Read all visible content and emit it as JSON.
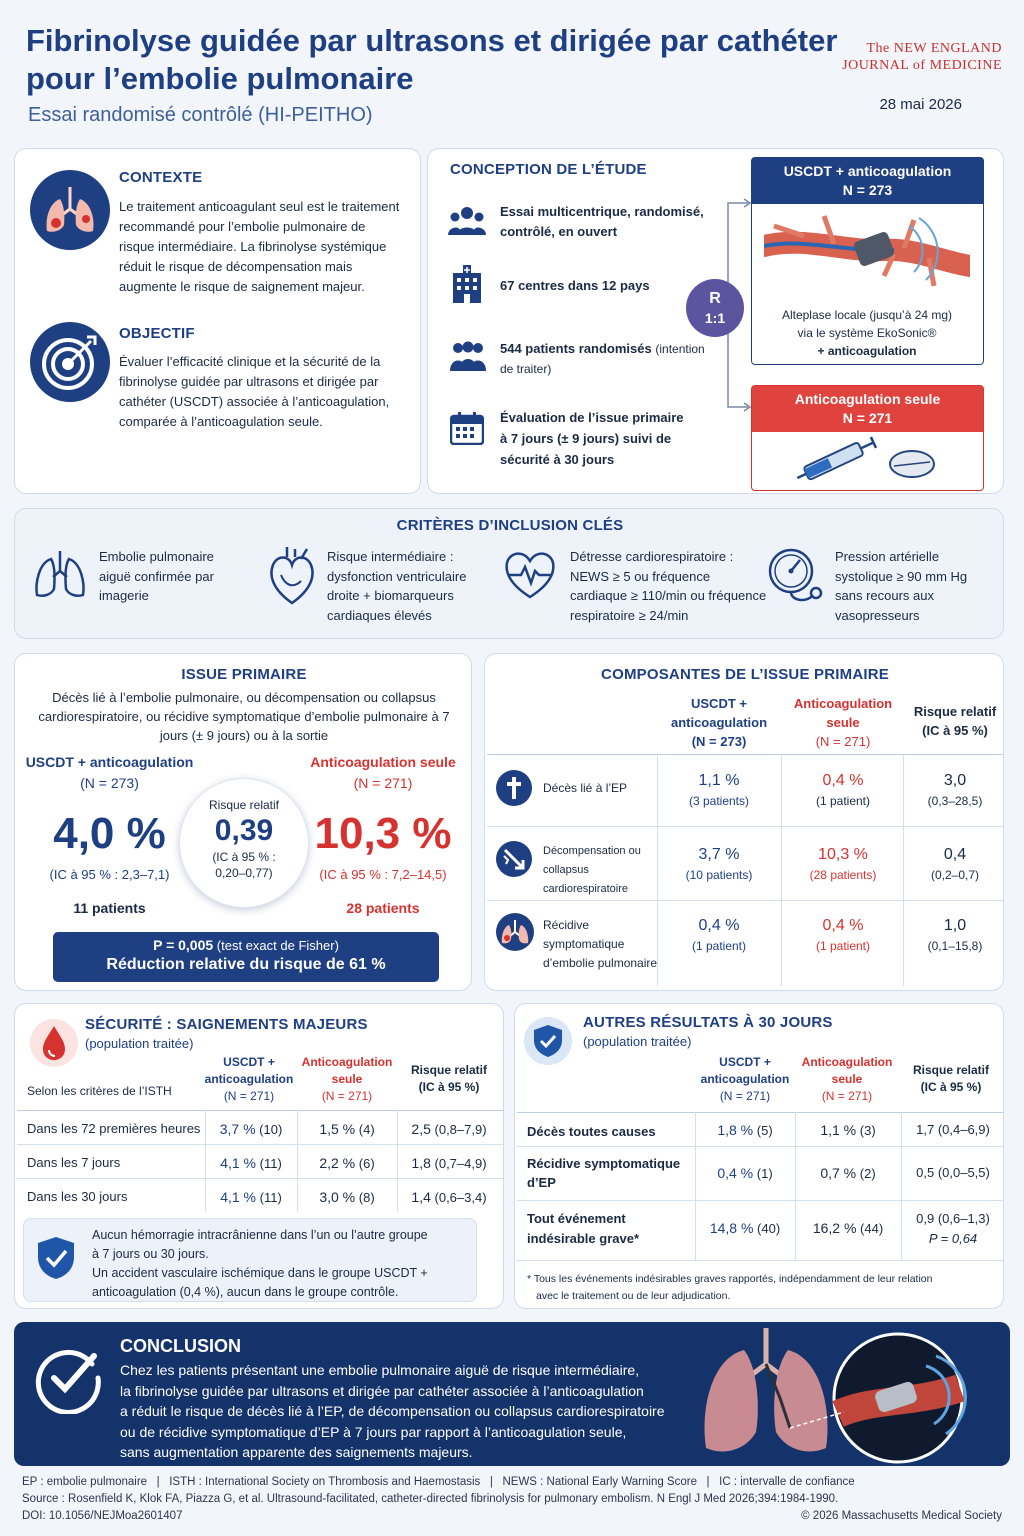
{
  "header": {
    "title_line1": "Fibrinolyse guidée par ultrasons et dirigée par cathéter",
    "title_line2": "pour l’embolie pulmonaire",
    "subtitle": "Essai randomisé contrôlé (HI-PEITHO)",
    "journal_line1": "The NEW ENGLAND",
    "journal_line2": "JOURNAL of MEDICINE",
    "date": "28 mai 2026"
  },
  "context": {
    "title": "CONTEXTE",
    "text": "Le traitement anticoagulant seul est le traitement recommandé pour l’embolie pulmonaire de risque intermédiaire. La fibrinolyse systémique réduit le risque de décompensation mais augmente le risque de saignement majeur."
  },
  "objective": {
    "title": "OBJECTIF",
    "text": "Évaluer l’efficacité clinique et la sécurité de la fibrinolyse guidée par ultrasons et dirigée par cathéter (USCDT) associée à l’anticoagulation, comparée à l’anticoagulation seule."
  },
  "design": {
    "title": "CONCEPTION DE L’ÉTUDE",
    "items": [
      {
        "icon": "group-icon",
        "bold": "Essai multicentrique, randomisé, contrôlé, en ouvert",
        "normal": ""
      },
      {
        "icon": "hospital-icon",
        "bold": "67 centres dans 12 pays",
        "normal": ""
      },
      {
        "icon": "patients-icon",
        "bold": "544 patients randomisés",
        "normal": "(intention de traiter)"
      },
      {
        "icon": "calendar-icon",
        "bold": "Évaluation de l’issue primaire à 7 jours (± 9 jours) suivi de sécurité à 30 jours",
        "normal": ""
      }
    ],
    "randomization_r": "R",
    "randomization_ratio": "1:1",
    "arm1_title": "USCDT + anticoagulation",
    "arm1_n": "N = 273",
    "arm1_desc1": "Alteplase locale (jusqu’à 24 mg)",
    "arm1_desc2": "via le système EkoSonic®",
    "arm1_desc3": "+ anticoagulation",
    "arm2_title": "Anticoagulation seule",
    "arm2_n": "N = 271"
  },
  "inclusion": {
    "title": "CRITÈRES D’INCLUSION CLÉS",
    "items": [
      {
        "icon": "lungs-icon",
        "text": "Embolie pulmonaire aiguë confirmée par imagerie"
      },
      {
        "icon": "heart-icon",
        "text": "Risque intermédiaire : dysfonction ventriculaire droite + biomarqueurs cardiaques élevés"
      },
      {
        "icon": "heart-rate-icon",
        "text": "Détresse cardiorespiratoire : NEWS ≥ 5 ou fréquence cardiaque ≥ 110/min ou fréquence respiratoire ≥ 24/min"
      },
      {
        "icon": "blood-pressure-gauge-icon",
        "text": "Pression artérielle systolique ≥ 90 mm Hg sans recours aux vasopresseurs"
      }
    ]
  },
  "primary": {
    "title": "ISSUE PRIMAIRE",
    "description": "Décès lié à l’embolie pulmonaire, ou décompensation ou collapsus cardiorespiratoire, ou récidive symptomatique d’embolie pulmonaire à 7 jours (± 9 jours) ou à la sortie",
    "arm1_label": "USCDT + anticoagulation",
    "arm1_n": "(N = 273)",
    "arm1_value": "4,0 %",
    "arm1_ci": "(IC à 95 % : 2,3–7,1)",
    "arm1_patients": "11 patients",
    "arm2_label": "Anticoagulation seule",
    "arm2_n": "(N = 271)",
    "arm2_value": "10,3 %",
    "arm2_ci": "(IC à 95 % : 7,2–14,5)",
    "arm2_patients": "28 patients",
    "rr_label": "Risque relatif",
    "rr_value": "0,39",
    "rr_ci1": "(IC à 95 % :",
    "rr_ci2": "0,20–0,77)",
    "p_value": "P = 0,005",
    "p_test": "(test exact de Fisher)",
    "reduction": "Réduction relative du risque de 61 %"
  },
  "components": {
    "title": "COMPOSANTES DE L’ISSUE PRIMAIRE",
    "col1": [
      "USCDT +",
      "anticoagulation",
      "(N = 273)"
    ],
    "col2": [
      "Anticoagulation",
      "seule",
      "(N = 271)"
    ],
    "col3": [
      "Risque relatif",
      "(IC à 95 %)"
    ],
    "rows": [
      {
        "icon": "cross-icon",
        "label": "Décès lié à l’EP",
        "v1": "1,1 %",
        "s1": "(3 patients)",
        "v2": "0,4 %",
        "s2": "(1 patient)",
        "rr": "3,0",
        "ci": "(0,3–28,5)"
      },
      {
        "icon": "collapse-icon",
        "label": "Décompensation ou collapsus cardiorespiratoire",
        "v1": "3,7 %",
        "s1": "(10 patients)",
        "v2": "10,3 %",
        "s2": "(28 patients)",
        "rr": "0,4",
        "ci": "(0,2–0,7)"
      },
      {
        "icon": "lungs-icon",
        "label": "Récidive symptomatique d’embolie pulmonaire",
        "v1": "0,4 %",
        "s1": "(1 patient)",
        "v2": "0,4 %",
        "s2": "(1 patient)",
        "rr": "1,0",
        "ci": "(0,1–15,8)"
      }
    ]
  },
  "safety": {
    "title": "SÉCURITÉ : SAIGNEMENTS MAJEURS",
    "population": "(population traitée)",
    "row_header": "Selon les critères de l’ISTH",
    "col1": [
      "USCDT +",
      "anticoagulation",
      "(N = 271)"
    ],
    "col2": [
      "Anticoagulation",
      "seule",
      "(N = 271)"
    ],
    "col3": [
      "Risque relatif",
      "(IC à 95 %)"
    ],
    "rows": [
      {
        "label": "Dans les 72 premières heures",
        "v1": "3,7 %",
        "n1": "(10)",
        "v2": "1,5 %",
        "n2": "(4)",
        "rr": "2,5",
        "ci": "(0,8–7,9)"
      },
      {
        "label": "Dans les 7 jours",
        "v1": "4,1 %",
        "n1": "(11)",
        "v2": "2,2 %",
        "n2": "(6)",
        "rr": "1,8",
        "ci": "(0,7–4,9)"
      },
      {
        "label": "Dans les 30 jours",
        "v1": "4,1 %",
        "n1": "(11)",
        "v2": "3,0 %",
        "n2": "(8)",
        "rr": "1,4",
        "ci": "(0,6–3,4)"
      }
    ],
    "note_line1": "Aucun hémorragie intracrânienne dans l’un ou l’autre groupe",
    "note_line2": "à 7 jours ou 30 jours.",
    "note_line3": "Un accident vasculaire ischémique dans le groupe USCDT +",
    "note_line4": "anticoagulation (0,4 %), aucun dans le groupe contrôle."
  },
  "other": {
    "title": "AUTRES RÉSULTATS À 30 JOURS",
    "population": "(population traitée)",
    "col1": [
      "USCDT +",
      "anticoagulation",
      "(N = 271)"
    ],
    "col2": [
      "Anticoagulation",
      "seule",
      "(N = 271)"
    ],
    "col3": [
      "Risque relatif",
      "(IC à 95 %)"
    ],
    "rows": [
      {
        "label1": "Décès toutes causes",
        "label2": "",
        "v1": "1,8 %",
        "n1": "(5)",
        "v2": "1,1 %",
        "n2": "(3)",
        "rr": "1,7 (0,4–6,9)",
        "p": ""
      },
      {
        "label1": "Récidive symptomatique",
        "label2": "d’EP",
        "v1": "0,4 %",
        "n1": "(1)",
        "v2": "0,7 %",
        "n2": "(2)",
        "rr": "0,5 (0,0–5,5)",
        "p": ""
      },
      {
        "label1": "Tout événement",
        "label2": "indésirable grave*",
        "v1": "14,8 %",
        "n1": "(40)",
        "v2": "16,2 %",
        "n2": "(44)",
        "rr": "0,9 (0,6–1,3)",
        "p": "P = 0,64"
      }
    ],
    "footnote_line1": "* Tous les événements indésirables graves rapportés, indépendamment de leur relation",
    "footnote_line2": "avec le traitement ou de leur adjudication."
  },
  "conclusion": {
    "title": "CONCLUSION",
    "lines": [
      "Chez les patients présentant une embolie pulmonaire aiguë de risque intermédiaire,",
      "la fibrinolyse guidée par ultrasons et dirigée par cathéter associée à l’anticoagulation",
      "a réduit le risque de décès lié à l’EP, de décompensation ou collapsus cardiorespiratoire",
      "ou de récidive symptomatique d’EP à 7 jours par rapport à l’anticoagulation seule,",
      "sans augmentation apparente des saignements majeurs."
    ]
  },
  "footer": {
    "abbrev": "EP : embolie pulmonaire   |   ISTH : International Society on Thrombosis and Haemostasis   |   NEWS : National Early Warning Score   |   IC : intervalle de confiance",
    "source": "Source : Rosenfield K, Klok FA, Piazza G, et al. Ultrasound-facilitated, catheter-directed fibrinolysis for pulmonary embolism. N Engl J Med 2026;394:1984-1990.",
    "doi": "DOI: 10.1056/NEJMoa2601407",
    "copyright": "© 2026 Massachusetts Medical Society"
  },
  "colors": {
    "navy": "#1f3f83",
    "red": "#d6322f",
    "dark_navy": "#14336b"
  }
}
